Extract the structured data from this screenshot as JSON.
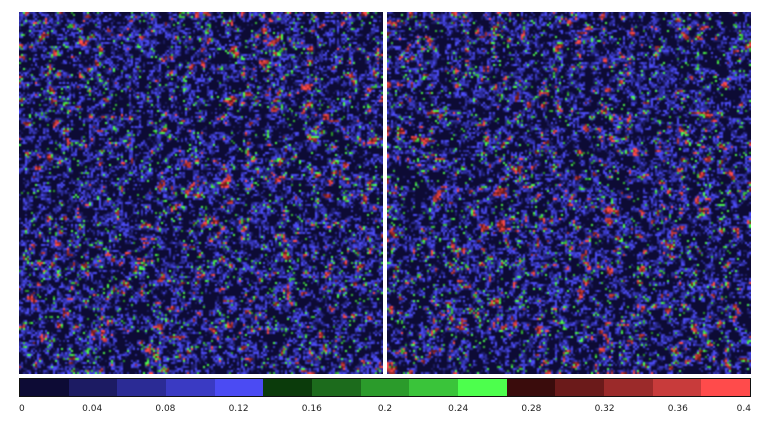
{
  "chart_data": [
    {
      "type": "heatmap",
      "panel": "left",
      "title": "",
      "xlabel": "",
      "ylabel": "",
      "value_range": [
        0,
        0.4
      ],
      "grid": false,
      "pattern": "dense random field; dominant value near 0, scattered blue (0.04-0.14), green (0.16-0.27) and red (0.28-0.4) cells forming short filaments"
    },
    {
      "type": "heatmap",
      "panel": "right",
      "title": "",
      "xlabel": "",
      "ylabel": "",
      "value_range": [
        0,
        0.4
      ],
      "grid": false,
      "pattern": "dense random field; dominant value near 0, scattered blue (0.04-0.14), green (0.16-0.27) and red (0.28-0.4) cells forming short filaments"
    }
  ],
  "colorbar": {
    "orientation": "horizontal",
    "placement": "bottom",
    "min": 0,
    "max": 0.4,
    "tick_labels": [
      "0",
      "0.04",
      "0.08",
      "0.12",
      "0.16",
      "0.2",
      "0.24",
      "0.28",
      "0.32",
      "0.36",
      "0.4"
    ],
    "colors": [
      "#0d0b35",
      "#1c1b63",
      "#2b2b95",
      "#3a3ac3",
      "#4b4bf3",
      "#0b3b0b",
      "#1c6b1c",
      "#2b9b2b",
      "#3ac43a",
      "#4dff4d",
      "#3a0c0c",
      "#6b1a1a",
      "#9b2a2a",
      "#c83b3b",
      "#ff4b4b"
    ]
  }
}
